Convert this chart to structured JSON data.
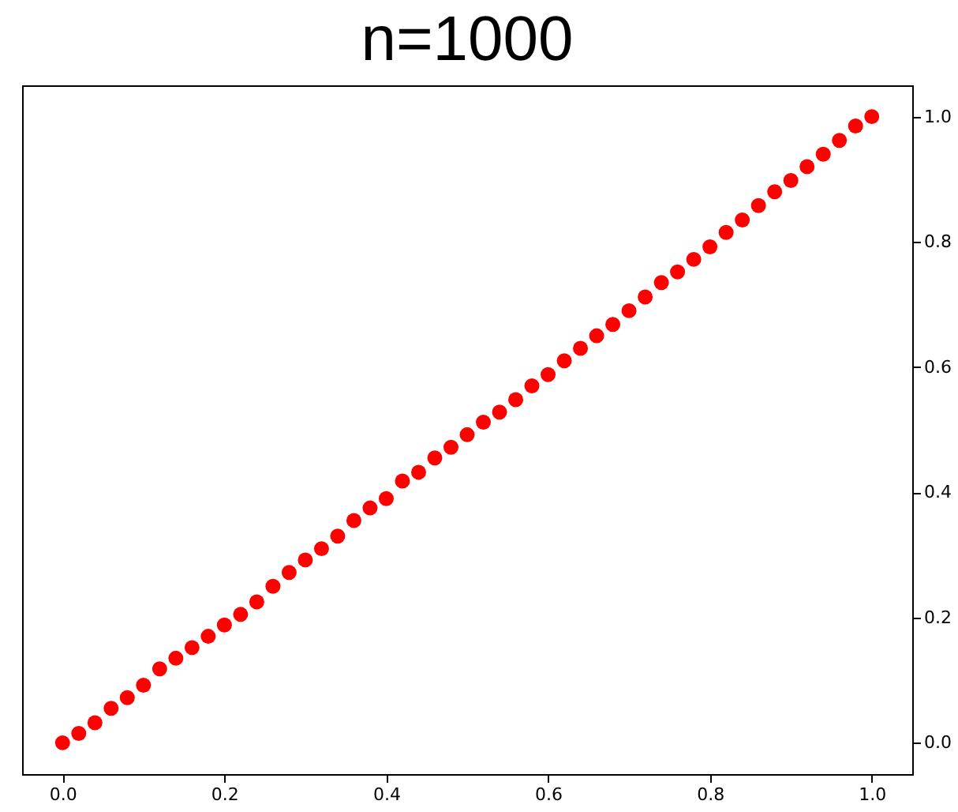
{
  "chart_data": {
    "type": "scatter",
    "title": "n=1000",
    "x": [
      0,
      0.02,
      0.04,
      0.06,
      0.08,
      0.1,
      0.12,
      0.14,
      0.16,
      0.18,
      0.2,
      0.22,
      0.24,
      0.26,
      0.28,
      0.3,
      0.32,
      0.34,
      0.36,
      0.38,
      0.4,
      0.42,
      0.44,
      0.46,
      0.48,
      0.5,
      0.52,
      0.54,
      0.56,
      0.58,
      0.6,
      0.62,
      0.64,
      0.66,
      0.68,
      0.7,
      0.72,
      0.74,
      0.76,
      0.78,
      0.8,
      0.82,
      0.84,
      0.86,
      0.88,
      0.9,
      0.92,
      0.94,
      0.96,
      0.98,
      1
    ],
    "series": [
      {
        "color": "#ff0000",
        "values": [
          0,
          0.015,
          0.032,
          0.055,
          0.072,
          0.092,
          0.118,
          0.135,
          0.152,
          0.17,
          0.188,
          0.205,
          0.225,
          0.25,
          0.272,
          0.292,
          0.31,
          0.33,
          0.355,
          0.375,
          0.39,
          0.418,
          0.432,
          0.455,
          0.472,
          0.492,
          0.512,
          0.528,
          0.548,
          0.57,
          0.588,
          0.61,
          0.63,
          0.65,
          0.668,
          0.69,
          0.712,
          0.735,
          0.752,
          0.772,
          0.792,
          0.815,
          0.835,
          0.858,
          0.88,
          0.898,
          0.92,
          0.94,
          0.962,
          0.985,
          1
        ]
      }
    ],
    "xlim": [
      -0.05,
      1.05
    ],
    "ylim": [
      -0.05,
      1.05
    ],
    "xticks": [
      {
        "value": 0,
        "label": "0.0"
      },
      {
        "value": 0.2,
        "label": "0.2"
      },
      {
        "value": 0.4,
        "label": "0.4"
      },
      {
        "value": 0.6,
        "label": "0.6"
      },
      {
        "value": 0.8,
        "label": "0.8"
      },
      {
        "value": 1,
        "label": "1.0"
      }
    ],
    "yticks": [
      {
        "value": 0,
        "label": "0.0"
      },
      {
        "value": 0.2,
        "label": "0.2"
      },
      {
        "value": 0.4,
        "label": "0.4"
      },
      {
        "value": 0.6,
        "label": "0.6"
      },
      {
        "value": 0.8,
        "label": "0.8"
      },
      {
        "value": 1,
        "label": "1.0"
      }
    ],
    "marker": "circle",
    "grid": false
  }
}
